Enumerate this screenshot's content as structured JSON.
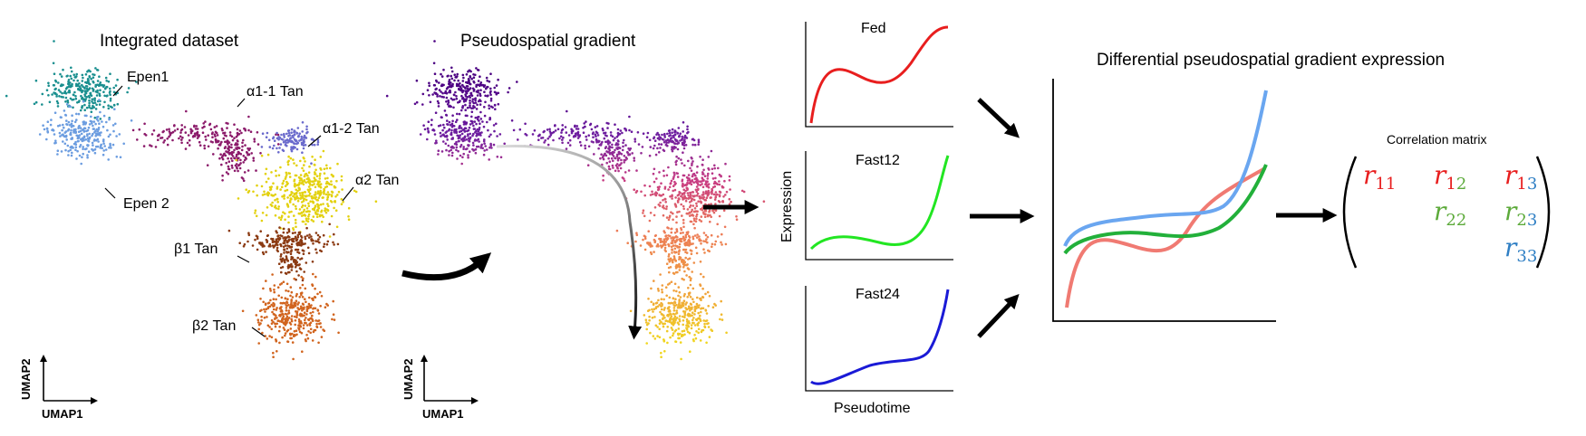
{
  "panel1": {
    "title": "Integrated dataset",
    "clusters": [
      {
        "id": "epen1",
        "label": "Epen1",
        "color": "#1a8f8f"
      },
      {
        "id": "epen2",
        "label": "Epen 2",
        "color": "#6c9de0"
      },
      {
        "id": "a11",
        "label": "α1-1 Tan",
        "color": "#8b1a6a"
      },
      {
        "id": "a12",
        "label": "α1-2 Tan",
        "color": "#6a6acc"
      },
      {
        "id": "a2",
        "label": "α2 Tan",
        "color": "#e3d10f"
      },
      {
        "id": "b1",
        "label": "β1 Tan",
        "color": "#8b3a12"
      },
      {
        "id": "b2",
        "label": "β2 Tan",
        "color": "#d1641e"
      }
    ],
    "xaxis": "UMAP1",
    "yaxis": "UMAP2"
  },
  "panel2": {
    "title": "Pseudospatial gradient",
    "xaxis": "UMAP1",
    "yaxis": "UMAP2"
  },
  "panel3": {
    "ylabel": "Expression",
    "xlabel": "Pseudotime",
    "plots": [
      {
        "name": "Fed",
        "color": "#e81e1e"
      },
      {
        "name": "Fast12",
        "color": "#22e622"
      },
      {
        "name": "Fast24",
        "color": "#1a1ad6"
      }
    ]
  },
  "panel4": {
    "title": "Differential pseudospatial gradient expression",
    "series_colors": {
      "fed": "#f07a72",
      "fast12": "#22b03a",
      "fast24": "#6aa6f0"
    }
  },
  "panel5": {
    "title": "Correlation matrix",
    "entries": [
      {
        "sym": "r",
        "sub1": "1",
        "sub2": "1",
        "c1": "#e81e1e",
        "c2": "#e81e1e",
        "name": "r11"
      },
      {
        "sym": "r",
        "sub1": "1",
        "sub2": "2",
        "c1": "#e81e1e",
        "c2": "#5caa3a",
        "name": "r12"
      },
      {
        "sym": "r",
        "sub1": "1",
        "sub2": "3",
        "c1": "#e81e1e",
        "c2": "#2f7fc4",
        "name": "r13"
      },
      {
        "sym": "r",
        "sub1": "2",
        "sub2": "2",
        "c1": "#5caa3a",
        "c2": "#5caa3a",
        "name": "r22"
      },
      {
        "sym": "r",
        "sub1": "2",
        "sub2": "3",
        "c1": "#5caa3a",
        "c2": "#2f7fc4",
        "name": "r23"
      },
      {
        "sym": "r",
        "sub1": "3",
        "sub2": "3",
        "c1": "#2f7fc4",
        "c2": "#2f7fc4",
        "name": "r33"
      }
    ]
  }
}
